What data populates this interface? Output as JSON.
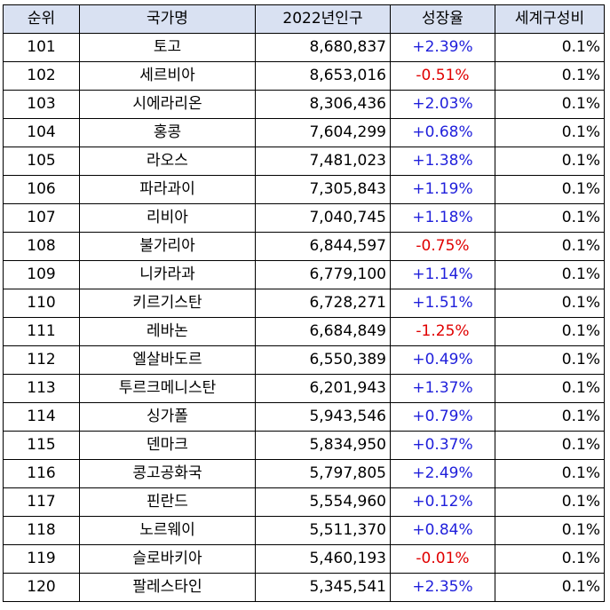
{
  "headers": [
    "순위",
    "국가명",
    "2022년인구",
    "성장율",
    "세계구성비"
  ],
  "rows": [
    {
      "rank": "101",
      "country": "토고",
      "population": "8,680,837",
      "growth": "+2.39%",
      "share": "0.1%"
    },
    {
      "rank": "102",
      "country": "세르비아",
      "population": "8,653,016",
      "growth": "-0.51%",
      "share": "0.1%"
    },
    {
      "rank": "103",
      "country": "시에라리온",
      "population": "8,306,436",
      "growth": "+2.03%",
      "share": "0.1%"
    },
    {
      "rank": "104",
      "country": "홍콩",
      "population": "7,604,299",
      "growth": "+0.68%",
      "share": "0.1%"
    },
    {
      "rank": "105",
      "country": "라오스",
      "population": "7,481,023",
      "growth": "+1.38%",
      "share": "0.1%"
    },
    {
      "rank": "106",
      "country": "파라과이",
      "population": "7,305,843",
      "growth": "+1.19%",
      "share": "0.1%"
    },
    {
      "rank": "107",
      "country": "리비아",
      "population": "7,040,745",
      "growth": "+1.18%",
      "share": "0.1%"
    },
    {
      "rank": "108",
      "country": "불가리아",
      "population": "6,844,597",
      "growth": "-0.75%",
      "share": "0.1%"
    },
    {
      "rank": "109",
      "country": "니카라과",
      "population": "6,779,100",
      "growth": "+1.14%",
      "share": "0.1%"
    },
    {
      "rank": "110",
      "country": "키르기스탄",
      "population": "6,728,271",
      "growth": "+1.51%",
      "share": "0.1%"
    },
    {
      "rank": "111",
      "country": "레바논",
      "population": "6,684,849",
      "growth": "-1.25%",
      "share": "0.1%"
    },
    {
      "rank": "112",
      "country": "엘살바도르",
      "population": "6,550,389",
      "growth": "+0.49%",
      "share": "0.1%"
    },
    {
      "rank": "113",
      "country": "투르크메니스탄",
      "population": "6,201,943",
      "growth": "+1.37%",
      "share": "0.1%"
    },
    {
      "rank": "114",
      "country": "싱가폴",
      "population": "5,943,546",
      "growth": "+0.79%",
      "share": "0.1%"
    },
    {
      "rank": "115",
      "country": "덴마크",
      "population": "5,834,950",
      "growth": "+0.37%",
      "share": "0.1%"
    },
    {
      "rank": "116",
      "country": "콩고공화국",
      "population": "5,797,805",
      "growth": "+2.49%",
      "share": "0.1%"
    },
    {
      "rank": "117",
      "country": "핀란드",
      "population": "5,554,960",
      "growth": "+0.12%",
      "share": "0.1%"
    },
    {
      "rank": "118",
      "country": "노르웨이",
      "population": "5,511,370",
      "growth": "+0.84%",
      "share": "0.1%"
    },
    {
      "rank": "119",
      "country": "슬로바키아",
      "population": "5,460,193",
      "growth": "-0.01%",
      "share": "0.1%"
    },
    {
      "rank": "120",
      "country": "팔레스타인",
      "population": "5,345,541",
      "growth": "+2.35%",
      "share": "0.1%"
    }
  ],
  "colors": {
    "header_bg": "#d9e1f2",
    "positive": "#1f1fdb",
    "negative": "#e00000"
  }
}
